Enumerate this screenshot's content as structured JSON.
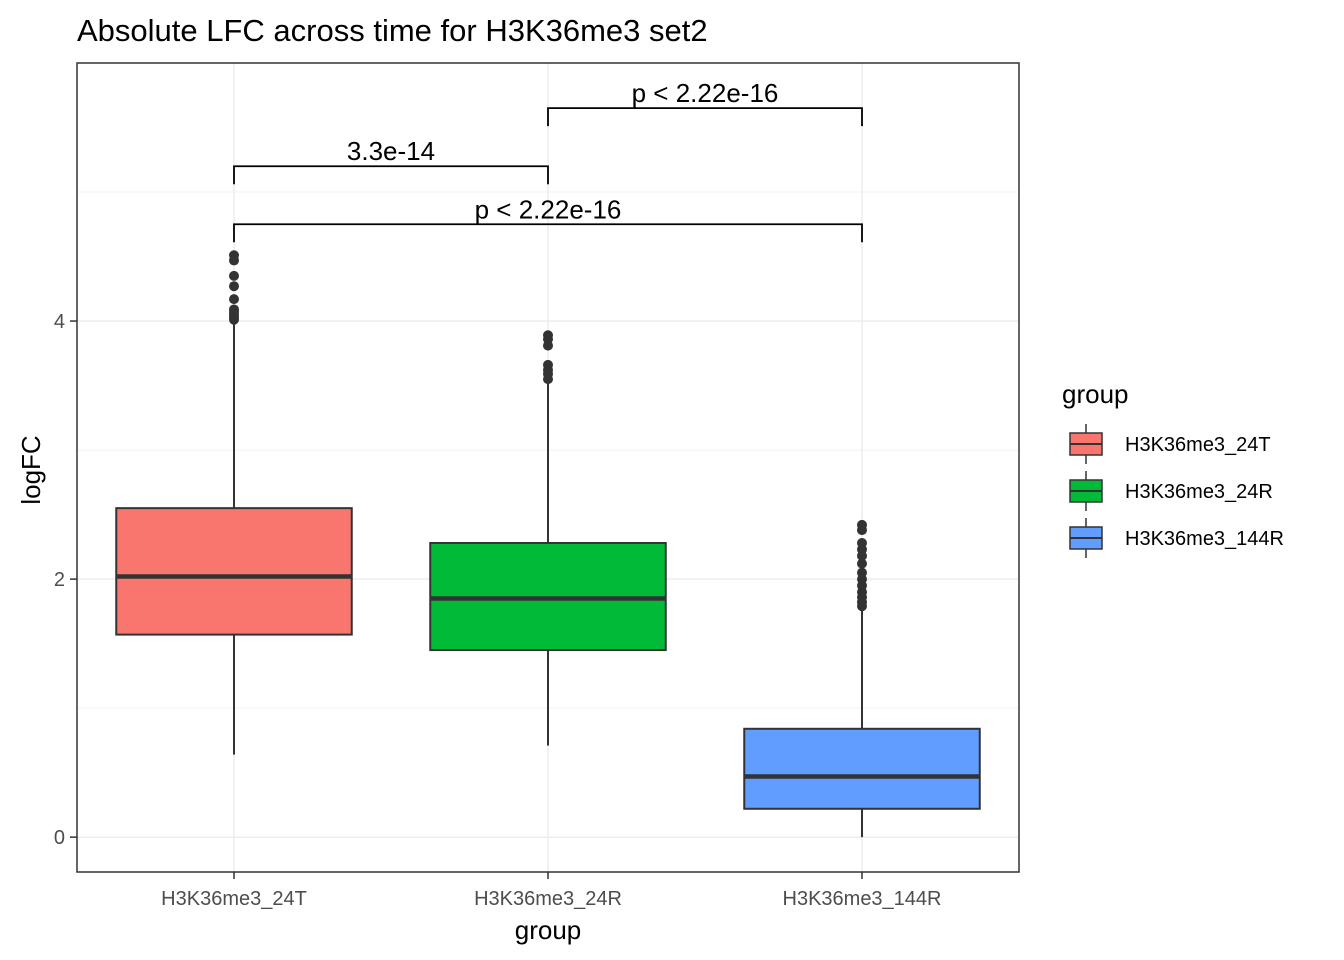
{
  "chart_data": {
    "type": "boxplot",
    "title": "Absolute LFC across time for H3K36me3 set2",
    "xlabel": "group",
    "ylabel": "logFC",
    "ylim": [
      -0.27,
      6.0
    ],
    "yticks": [
      0,
      2,
      4
    ],
    "ytick_labels": [
      "0",
      "2",
      "4"
    ],
    "grid": true,
    "legend": {
      "title": "group",
      "placement": "right"
    },
    "categories": [
      "H3K36me3_24T",
      "H3K36me3_24R",
      "H3K36me3_144R"
    ],
    "series": [
      {
        "name": "H3K36me3_24T",
        "color": "#F8766D",
        "whisker_low": 0.64,
        "q1": 1.57,
        "median": 2.02,
        "q3": 2.55,
        "whisker_high": 4.0,
        "outliers": [
          4.01,
          4.03,
          4.05,
          4.07,
          4.09,
          4.17,
          4.27,
          4.35,
          4.47,
          4.51
        ]
      },
      {
        "name": "H3K36me3_24R",
        "color": "#00BA38",
        "whisker_low": 0.71,
        "q1": 1.45,
        "median": 1.85,
        "q3": 2.28,
        "whisker_high": 3.53,
        "outliers": [
          3.55,
          3.59,
          3.62,
          3.66,
          3.81,
          3.86,
          3.89
        ]
      },
      {
        "name": "H3K36me3_144R",
        "color": "#619CFF",
        "whisker_low": 0.0,
        "q1": 0.22,
        "median": 0.47,
        "q3": 0.84,
        "whisker_high": 1.78,
        "outliers": [
          1.79,
          1.82,
          1.86,
          1.9,
          1.95,
          2.0,
          2.05,
          2.12,
          2.18,
          2.23,
          2.28,
          2.38,
          2.42
        ]
      }
    ],
    "annotations": [
      {
        "label": "3.3e-14",
        "from": 0,
        "to": 1,
        "y": 5.2
      },
      {
        "label": "p < 2.22e-16",
        "from": 1,
        "to": 2,
        "y": 5.65
      },
      {
        "label": "p < 2.22e-16",
        "from": 0,
        "to": 2,
        "y": 4.75
      }
    ]
  }
}
